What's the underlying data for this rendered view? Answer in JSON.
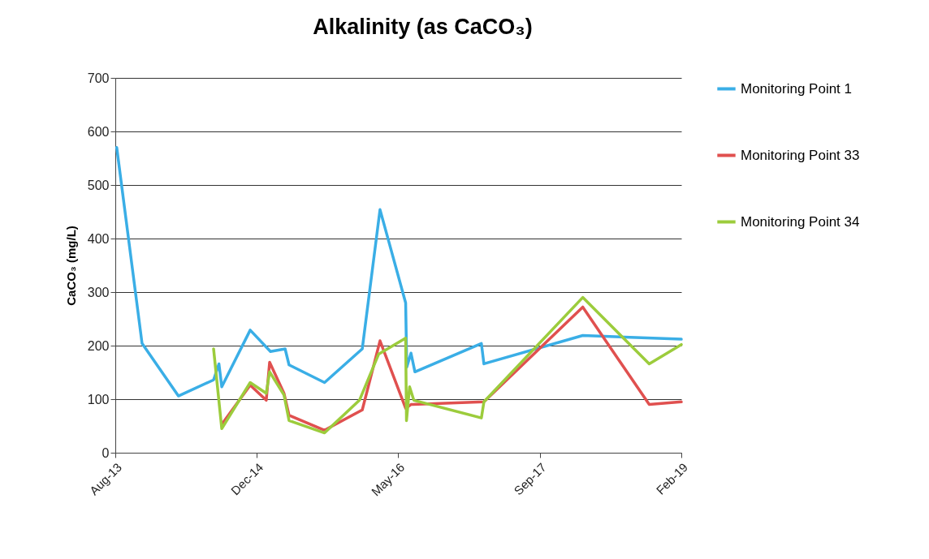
{
  "chart_data": {
    "type": "line",
    "title": "Alkalinity (as CaCO₃)",
    "ylabel": "CaCO₃ (mg/L)",
    "xlim": [
      "2013-08-01",
      "2019-02-01"
    ],
    "xticks": [
      {
        "value": "2013-08-01",
        "label": "Aug-13"
      },
      {
        "value": "2014-12-16",
        "label": "Dec-14"
      },
      {
        "value": "2016-05-01",
        "label": "May-16"
      },
      {
        "value": "2017-09-16",
        "label": "Sep-17"
      },
      {
        "value": "2019-02-01",
        "label": "Feb-19"
      }
    ],
    "ylim": [
      0,
      700
    ],
    "yticks": [
      0,
      100,
      200,
      300,
      400,
      500,
      600,
      700
    ],
    "grid": "y",
    "legend": "right",
    "line_style": "solid",
    "marker": "none",
    "series": [
      {
        "name": "Monitoring Point 1",
        "color": "#3aaee6",
        "x": [
          "2013-08-06",
          "2013-11-04",
          "2014-03-13",
          "2014-07-16",
          "2014-08-04",
          "2014-08-14",
          "2014-11-23",
          "2015-02-03",
          "2015-03-27",
          "2015-04-10",
          "2015-08-14",
          "2015-12-26",
          "2016-02-27",
          "2016-05-28",
          "2016-06-01",
          "2016-06-16",
          "2016-06-30",
          "2017-02-21",
          "2017-03-02",
          "2018-02-16",
          "2019-02-01"
        ],
        "values": [
          570,
          204,
          106,
          136,
          166,
          123,
          229,
          189,
          194,
          164,
          131,
          194,
          454,
          280,
          160,
          186,
          151,
          204,
          166,
          219,
          212
        ]
      },
      {
        "name": "Monitoring Point 33",
        "color": "#e0504f",
        "x": [
          "2014-08-14",
          "2014-11-23",
          "2015-01-19",
          "2015-01-31",
          "2015-03-23",
          "2015-04-10",
          "2015-08-14",
          "2015-12-26",
          "2016-02-27",
          "2016-05-28",
          "2016-06-16",
          "2017-03-02",
          "2018-02-16",
          "2018-10-10",
          "2019-02-01"
        ],
        "values": [
          53,
          126,
          98,
          169,
          111,
          70,
          42,
          80,
          209,
          83,
          90,
          95,
          272,
          90,
          95
        ]
      },
      {
        "name": "Monitoring Point 34",
        "color": "#9ccc3c",
        "x": [
          "2014-07-16",
          "2014-08-14",
          "2014-11-23",
          "2015-01-19",
          "2015-01-31",
          "2015-03-23",
          "2015-04-10",
          "2015-08-14",
          "2015-12-16",
          "2016-02-22",
          "2016-05-28",
          "2016-05-31",
          "2016-06-11",
          "2016-06-26",
          "2017-02-21",
          "2017-03-02",
          "2018-02-16",
          "2018-10-10",
          "2019-02-01"
        ],
        "values": [
          194,
          45,
          131,
          111,
          151,
          108,
          60,
          37,
          98,
          184,
          214,
          60,
          123,
          98,
          65,
          95,
          290,
          166,
          202
        ]
      }
    ]
  }
}
